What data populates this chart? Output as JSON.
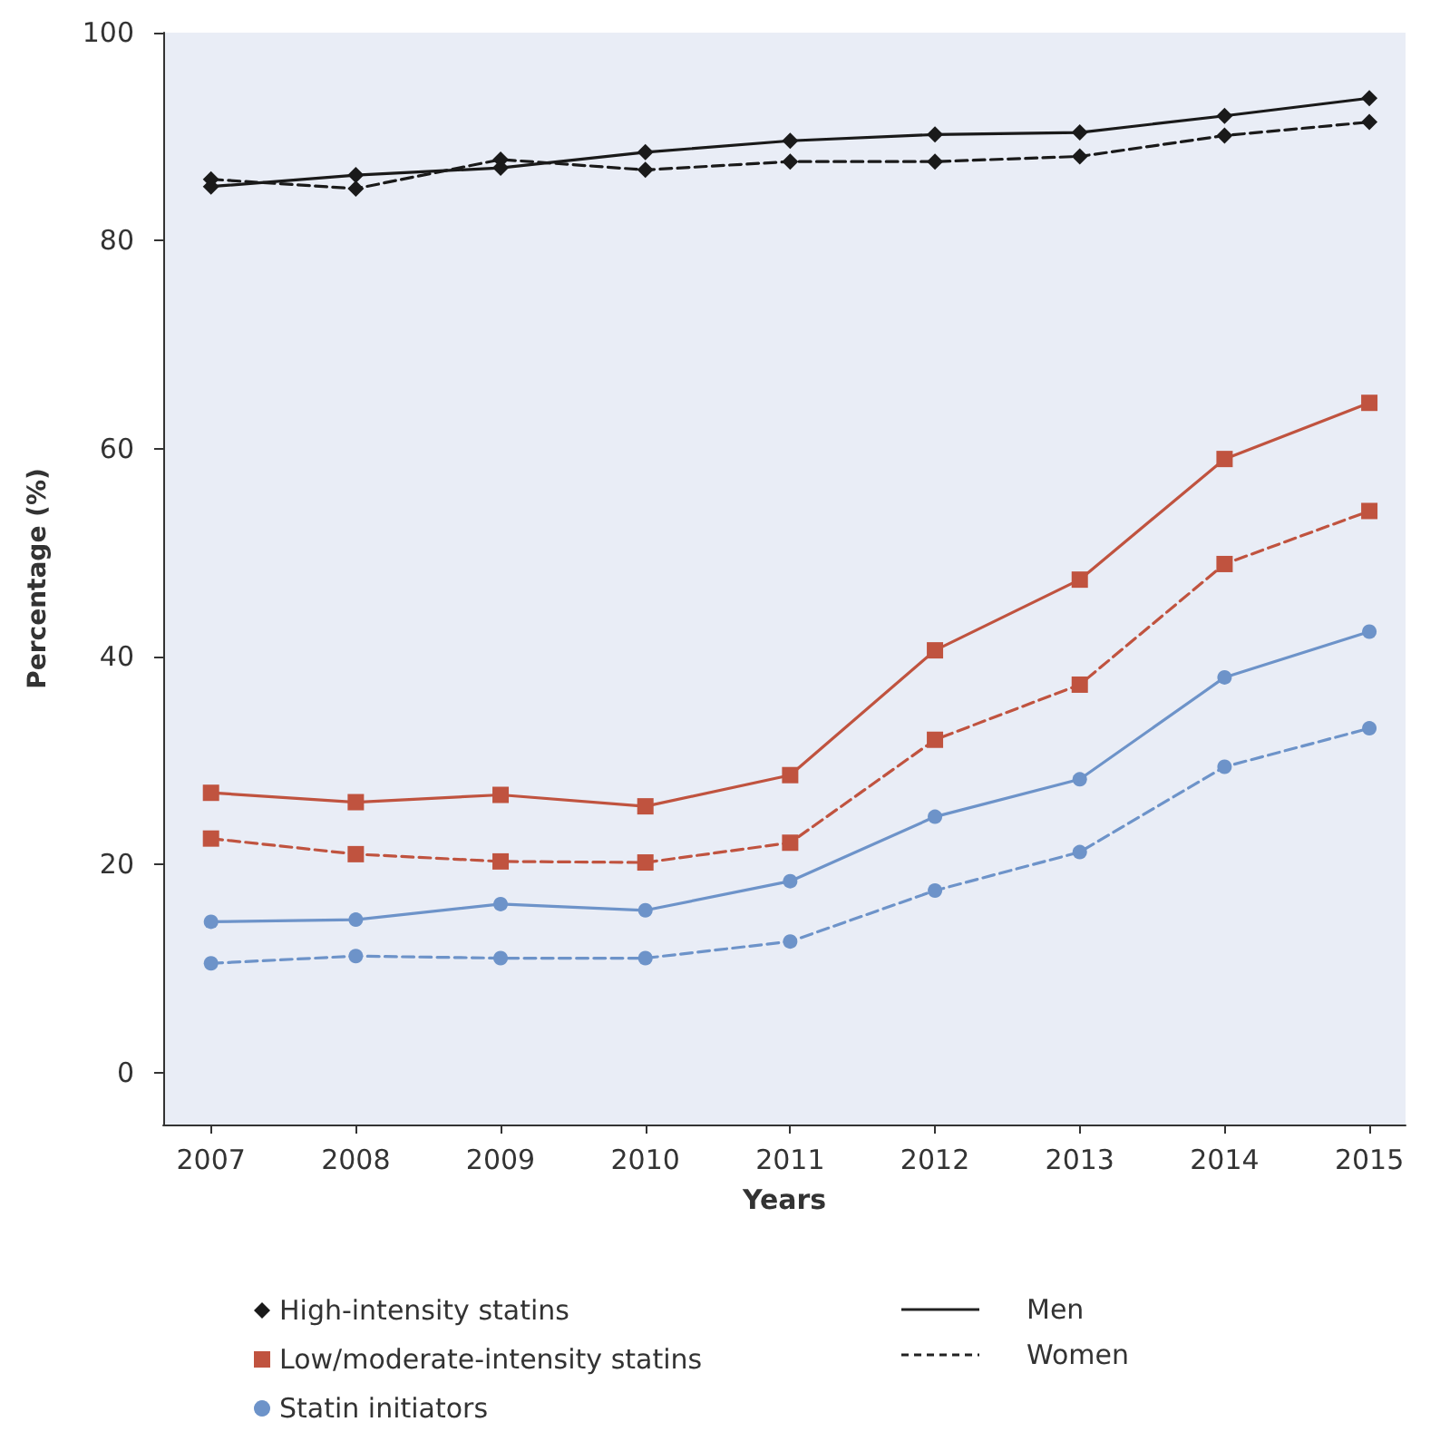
{
  "chart_data": {
    "type": "line",
    "xlabel": "Years",
    "ylabel": "Percentage (%)",
    "x": [
      2007,
      2008,
      2009,
      2010,
      2011,
      2012,
      2013,
      2014,
      2015
    ],
    "xlim": [
      2006.67,
      2015.25
    ],
    "xticks": [
      2007,
      2008,
      2009,
      2010,
      2011,
      2012,
      2013,
      2014,
      2015
    ],
    "ylim": [
      -5,
      100
    ],
    "yticks": [
      0,
      20,
      40,
      60,
      80,
      100
    ],
    "grid": false,
    "legend": "bottom",
    "annotations": [
      "Men",
      "Women"
    ],
    "series": [
      {
        "name": "High-intensity statins",
        "color": "#1a1a1a",
        "marker": "diamond",
        "line_style": "solid",
        "values": [
          85.2,
          86.3,
          87.0,
          88.5,
          89.6,
          90.2,
          90.4,
          92.0,
          93.7
        ]
      },
      {
        "color": "#1a1a1a",
        "marker": "diamond",
        "line_style": "dashed",
        "values": [
          85.9,
          85.0,
          87.8,
          86.8,
          87.6,
          87.6,
          88.1,
          90.1,
          91.4
        ]
      },
      {
        "name": "Low/moderate-intensity statins",
        "color": "#c0533f",
        "marker": "square",
        "line_style": "solid",
        "values": [
          26.9,
          26.0,
          26.7,
          25.6,
          28.6,
          40.6,
          47.4,
          59.0,
          64.4
        ]
      },
      {
        "color": "#c0533f",
        "marker": "square",
        "line_style": "dashed",
        "values": [
          22.5,
          21.0,
          20.3,
          20.2,
          22.1,
          32.0,
          37.3,
          48.9,
          54.0
        ]
      },
      {
        "name": "Statin initiators",
        "color": "#6d93c9",
        "marker": "circle",
        "line_style": "solid",
        "values": [
          14.5,
          14.7,
          16.2,
          15.6,
          18.4,
          24.6,
          28.2,
          38.0,
          42.4
        ]
      },
      {
        "color": "#6d93c9",
        "marker": "circle",
        "line_style": "dashed",
        "values": [
          10.5,
          11.2,
          11.0,
          11.0,
          12.6,
          17.5,
          21.2,
          29.4,
          33.1
        ]
      }
    ]
  }
}
